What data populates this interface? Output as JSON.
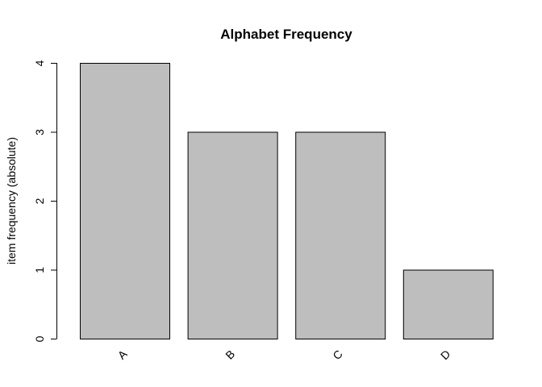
{
  "chart_data": {
    "type": "bar",
    "title": "Alphabet Frequency",
    "xlabel": "",
    "ylabel": "item frequency (absolute)",
    "categories": [
      "A",
      "B",
      "C",
      "D"
    ],
    "values": [
      4,
      3,
      3,
      1
    ],
    "ylim": [
      0,
      4
    ],
    "yticks": [
      0,
      1,
      2,
      3,
      4
    ],
    "bar_color": "#bebebe",
    "bar_border_color": "#000000",
    "grid": false,
    "legend": "none"
  }
}
